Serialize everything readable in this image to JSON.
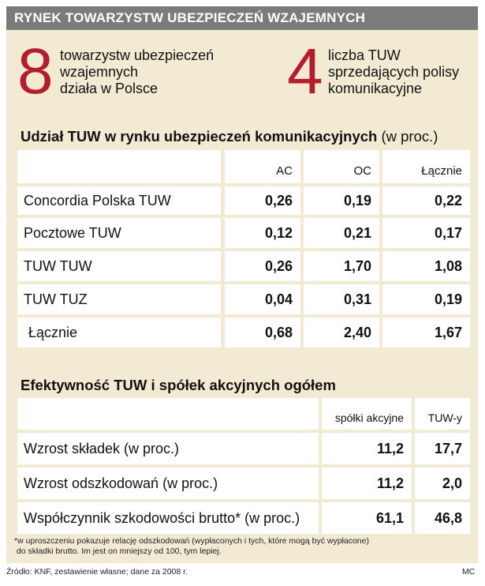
{
  "title": "RYNEK TOWARZYSTW UBEZPIECZEŃ WZAJEMNYCH",
  "stats": [
    {
      "number": "8",
      "lines": [
        "towarzystw ubezpieczeń",
        "wzajemnych",
        "działa w Polsce"
      ]
    },
    {
      "number": "4",
      "lines": [
        "liczba TUW",
        "sprzedających polisy",
        "komunikacyjne"
      ]
    }
  ],
  "table1": {
    "title": "Udział TUW w rynku ubezpieczeń komunikacyjnych",
    "title_suffix": "(w proc.)",
    "columns": [
      "AC",
      "OC",
      "Łącznie"
    ],
    "rows": [
      {
        "label": "Concordia Polska TUW",
        "values": [
          "0,26",
          "0,19",
          "0,22"
        ]
      },
      {
        "label": "Pocztowe TUW",
        "values": [
          "0,12",
          "0,21",
          "0,17"
        ]
      },
      {
        "label": "TUW TUW",
        "values": [
          "0,26",
          "1,70",
          "1,08"
        ]
      },
      {
        "label": "TUW TUZ",
        "values": [
          "0,04",
          "0,31",
          "0,19"
        ]
      },
      {
        "label": " Łącznie",
        "values": [
          "0,68",
          "2,40",
          "1,67"
        ]
      }
    ]
  },
  "table2": {
    "title": "Efektywność TUW i spółek akcyjnych ogółem",
    "columns": [
      "spółki akcyjne",
      "TUW-y"
    ],
    "rows": [
      {
        "label": "Wzrost składek (w proc.)",
        "values": [
          "11,2",
          "17,7"
        ]
      },
      {
        "label": "Wzrost odszkodowań (w proc.)",
        "values": [
          "11,2",
          "2,0"
        ]
      },
      {
        "label": "Współczynnik szkodowości brutto* (w proc.)",
        "values": [
          "61,1",
          "46,8"
        ]
      }
    ]
  },
  "footnote": [
    "*w uproszczeniu pokazuje relację odszkodowań (wypłaconych i tych, które mogą być wypłacone)",
    " do składki brutto. Im jest on mniejszy od 100, tym lepiej."
  ],
  "source": "Źródło: KNF, zestawienie własne; dane za 2008 r.",
  "author": "MC",
  "colors": {
    "panel": "#f3ead3",
    "header": "#7b7b7b",
    "accent": "#b41d2b"
  }
}
